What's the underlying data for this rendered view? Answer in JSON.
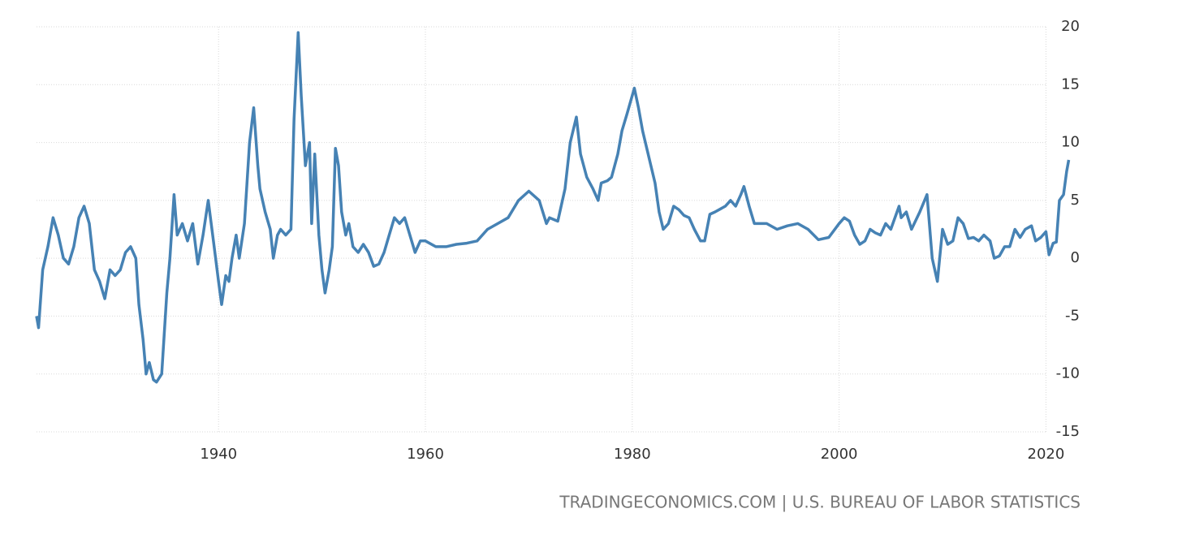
{
  "chart_data": {
    "type": "line",
    "source": "TRADINGECONOMICS.COM | U.S. BUREAU OF LABOR STATISTICS",
    "x": [
      1922.4,
      1922.6,
      1923,
      1923.5,
      1924,
      1924.5,
      1925,
      1925.5,
      1926,
      1926.5,
      1927,
      1927.5,
      1928,
      1928.5,
      1929,
      1929.5,
      1930,
      1930.5,
      1931,
      1931.5,
      1932,
      1932.3,
      1932.7,
      1933,
      1933.3,
      1933.7,
      1934,
      1934.5,
      1935,
      1935.3,
      1935.7,
      1936,
      1936.5,
      1937,
      1937.5,
      1938,
      1938.5,
      1939,
      1939.5,
      1940,
      1940.3,
      1940.7,
      1941,
      1941.3,
      1941.7,
      1942,
      1942.5,
      1943,
      1943.4,
      1943.8,
      1944,
      1944.5,
      1945,
      1945.3,
      1945.7,
      1946,
      1946.5,
      1947,
      1947.3,
      1947.7,
      1948,
      1948.4,
      1948.8,
      1949,
      1949.3,
      1949.7,
      1950,
      1950.3,
      1950.7,
      1951,
      1951.3,
      1951.6,
      1951.9,
      1952.3,
      1952.6,
      1953,
      1953.5,
      1954,
      1954.5,
      1955,
      1955.5,
      1956,
      1956.5,
      1957,
      1957.5,
      1958,
      1958.5,
      1959,
      1959.5,
      1960,
      1961,
      1962,
      1963,
      1964,
      1965,
      1966,
      1967,
      1968,
      1969,
      1970,
      1971,
      1971.7,
      1972,
      1972.8,
      1973.5,
      1974,
      1974.6,
      1975,
      1975.6,
      1976.2,
      1976.7,
      1977,
      1977.6,
      1978,
      1978.6,
      1979,
      1979.5,
      1980.2,
      1980.6,
      1981,
      1981.4,
      1981.8,
      1982.2,
      1982.6,
      1983,
      1983.5,
      1984,
      1984.5,
      1985,
      1985.5,
      1986,
      1986.6,
      1987,
      1987.5,
      1988,
      1989,
      1989.5,
      1990,
      1990.5,
      1990.8,
      1991.3,
      1991.8,
      1992.5,
      1993,
      1994,
      1995,
      1996,
      1997,
      1998,
      1999,
      2000,
      2000.5,
      2001,
      2001.5,
      2002,
      2002.5,
      2003,
      2003.5,
      2004,
      2004.5,
      2005,
      2005.8,
      2006,
      2006.5,
      2007,
      2007.8,
      2008.5,
      2009,
      2009.5,
      2010,
      2010.5,
      2011,
      2011.5,
      2012,
      2012.5,
      2013,
      2013.5,
      2014,
      2014.6,
      2015,
      2015.5,
      2016,
      2016.5,
      2017,
      2017.5,
      2018,
      2018.6,
      2019,
      2019.5,
      2020,
      2020.3,
      2020.7,
      2021,
      2021.3,
      2021.7,
      2022,
      2022.2
    ],
    "series": [
      {
        "color": "#4682b4",
        "values": [
          -5,
          -6,
          -1,
          1,
          3.5,
          2,
          0,
          -0.5,
          1,
          3.5,
          4.5,
          3,
          -1,
          -2,
          -3.5,
          -1,
          -1.5,
          -1,
          0.5,
          1,
          0,
          -4,
          -7,
          -10,
          -9,
          -10.5,
          -10.7,
          -10,
          -3,
          0,
          5.5,
          2,
          3,
          1.5,
          3,
          -0.5,
          2,
          5,
          1.5,
          -2,
          -4,
          -1.5,
          -2,
          0,
          2,
          0,
          3,
          10,
          13,
          8,
          6,
          4,
          2.5,
          0,
          2,
          2.5,
          2,
          2.5,
          12,
          19.5,
          14,
          8,
          10,
          3,
          9,
          2,
          -1,
          -3,
          -1,
          1,
          9.5,
          8,
          4,
          2,
          3,
          1,
          0.5,
          1.2,
          0.5,
          -0.7,
          -0.5,
          0.5,
          2,
          3.5,
          3,
          3.5,
          2,
          0.5,
          1.5,
          1.5,
          1,
          1,
          1.2,
          1.3,
          1.5,
          2.5,
          3,
          3.5,
          5,
          5.8,
          5,
          3,
          3.5,
          3.2,
          6,
          10,
          12.2,
          9,
          7,
          6,
          5,
          6.5,
          6.7,
          7,
          9,
          11,
          12.5,
          14.7,
          13,
          11,
          9.5,
          8,
          6.5,
          4,
          2.5,
          3,
          4.5,
          4.2,
          3.7,
          3.5,
          2.5,
          1.5,
          1.5,
          3.8,
          4,
          4.5,
          5,
          4.5,
          5.5,
          6.2,
          4.5,
          3,
          3,
          3,
          2.5,
          2.8,
          3,
          2.5,
          1.6,
          1.8,
          3,
          3.5,
          3.2,
          2,
          1.2,
          1.5,
          2.5,
          2.2,
          2,
          3,
          2.5,
          4.5,
          3.5,
          4,
          2.5,
          4,
          5.5,
          0,
          -2,
          2.5,
          1.2,
          1.5,
          3.5,
          3,
          1.7,
          1.8,
          1.5,
          2,
          1.5,
          0,
          0.2,
          1,
          1,
          2.5,
          1.8,
          2.5,
          2.8,
          1.5,
          1.8,
          2.3,
          0.3,
          1.3,
          1.4,
          5,
          5.5,
          7.5,
          8.5
        ]
      }
    ],
    "xlim": [
      1922.4,
      2022.4
    ],
    "xticks": [
      1940,
      1960,
      1980,
      2000,
      2020
    ],
    "ylim": [
      -15,
      20
    ],
    "yticks": [
      -15,
      -10,
      -5,
      0,
      5,
      10,
      15,
      20
    ],
    "grid": true
  }
}
